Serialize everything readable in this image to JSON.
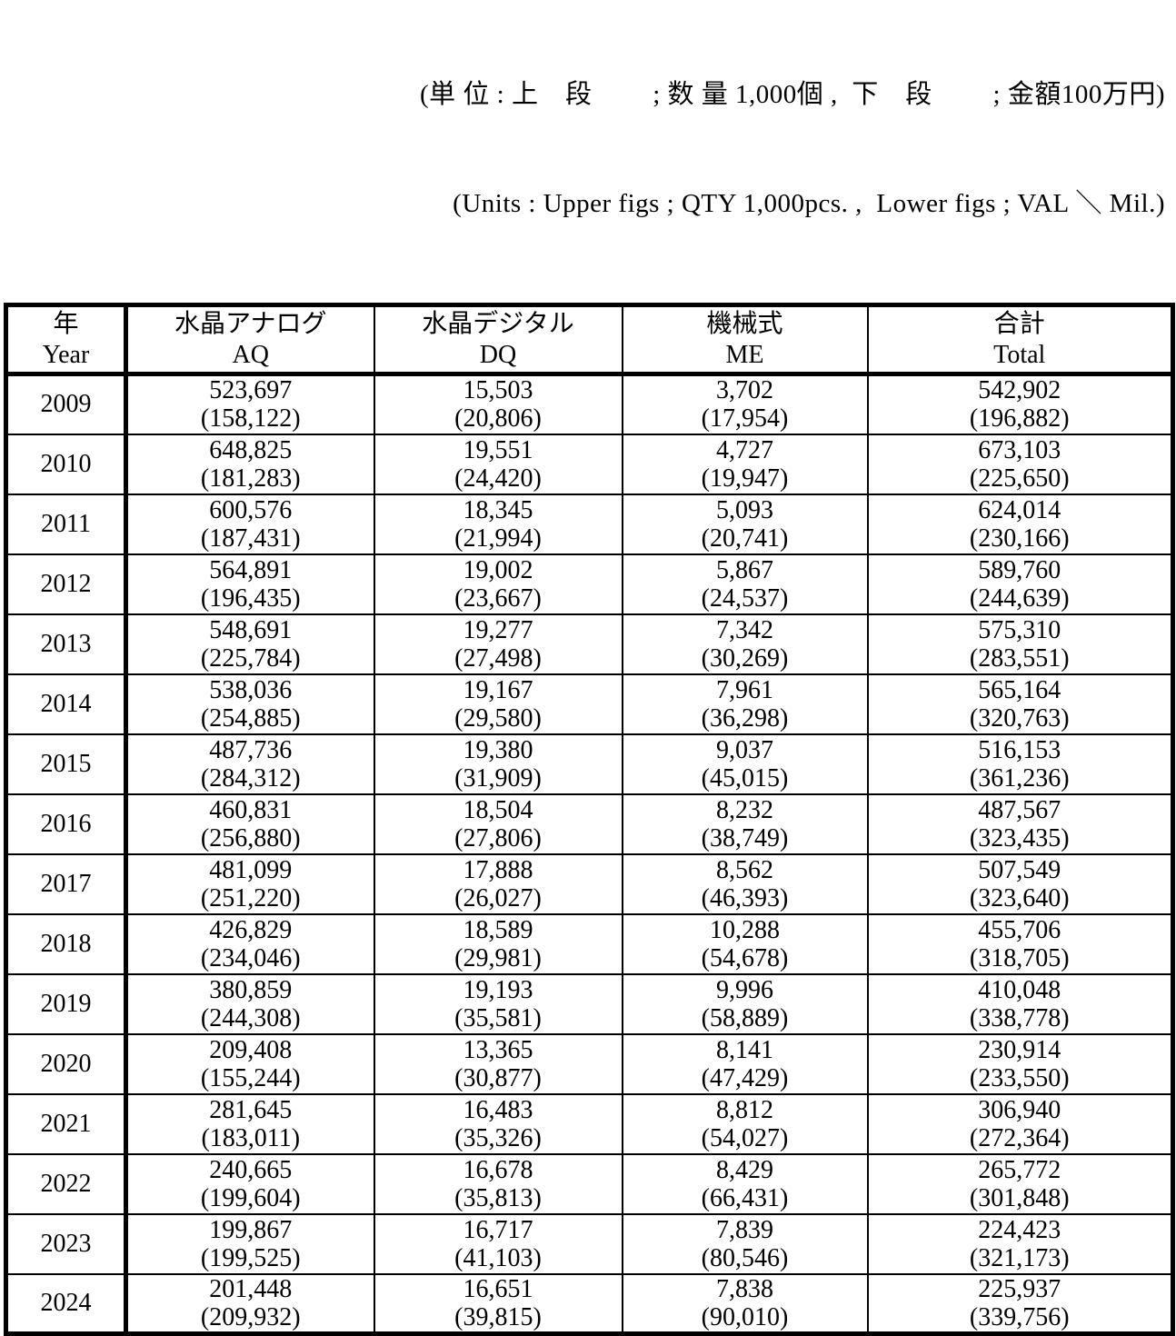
{
  "caption": {
    "line1": "(単 位 : 上　段　　 ; 数 量 1,000個 ,  下　段　　 ; 金額100万円)",
    "line2": "(Units : Upper figs ; QTY 1,000pcs. ,  Lower figs ; VAL ＼ Mil.)"
  },
  "table": {
    "columns": [
      {
        "jp": "年",
        "en": "Year"
      },
      {
        "jp": "水晶アナログ",
        "en": "AQ"
      },
      {
        "jp": "水晶デジタル",
        "en": "DQ"
      },
      {
        "jp": "機械式",
        "en": "ME"
      },
      {
        "jp": "合計",
        "en": "Total"
      }
    ],
    "rows": [
      {
        "year": "2009",
        "cells": [
          {
            "qty": "523,697",
            "val": "(158,122)"
          },
          {
            "qty": "15,503",
            "val": "(20,806)"
          },
          {
            "qty": "3,702",
            "val": "(17,954)"
          },
          {
            "qty": "542,902",
            "val": "(196,882)"
          }
        ]
      },
      {
        "year": "2010",
        "cells": [
          {
            "qty": "648,825",
            "val": "(181,283)"
          },
          {
            "qty": "19,551",
            "val": "(24,420)"
          },
          {
            "qty": "4,727",
            "val": "(19,947)"
          },
          {
            "qty": "673,103",
            "val": "(225,650)"
          }
        ]
      },
      {
        "year": "2011",
        "cells": [
          {
            "qty": "600,576",
            "val": "(187,431)"
          },
          {
            "qty": "18,345",
            "val": "(21,994)"
          },
          {
            "qty": "5,093",
            "val": "(20,741)"
          },
          {
            "qty": "624,014",
            "val": "(230,166)"
          }
        ]
      },
      {
        "year": "2012",
        "cells": [
          {
            "qty": "564,891",
            "val": "(196,435)"
          },
          {
            "qty": "19,002",
            "val": "(23,667)"
          },
          {
            "qty": "5,867",
            "val": "(24,537)"
          },
          {
            "qty": "589,760",
            "val": "(244,639)"
          }
        ]
      },
      {
        "year": "2013",
        "cells": [
          {
            "qty": "548,691",
            "val": "(225,784)"
          },
          {
            "qty": "19,277",
            "val": "(27,498)"
          },
          {
            "qty": "7,342",
            "val": "(30,269)"
          },
          {
            "qty": "575,310",
            "val": "(283,551)"
          }
        ]
      },
      {
        "year": "2014",
        "cells": [
          {
            "qty": "538,036",
            "val": "(254,885)"
          },
          {
            "qty": "19,167",
            "val": "(29,580)"
          },
          {
            "qty": "7,961",
            "val": "(36,298)"
          },
          {
            "qty": "565,164",
            "val": "(320,763)"
          }
        ]
      },
      {
        "year": "2015",
        "cells": [
          {
            "qty": "487,736",
            "val": "(284,312)"
          },
          {
            "qty": "19,380",
            "val": "(31,909)"
          },
          {
            "qty": "9,037",
            "val": "(45,015)"
          },
          {
            "qty": "516,153",
            "val": "(361,236)"
          }
        ]
      },
      {
        "year": "2016",
        "cells": [
          {
            "qty": "460,831",
            "val": "(256,880)"
          },
          {
            "qty": "18,504",
            "val": "(27,806)"
          },
          {
            "qty": "8,232",
            "val": "(38,749)"
          },
          {
            "qty": "487,567",
            "val": "(323,435)"
          }
        ]
      },
      {
        "year": "2017",
        "cells": [
          {
            "qty": "481,099",
            "val": "(251,220)"
          },
          {
            "qty": "17,888",
            "val": "(26,027)"
          },
          {
            "qty": "8,562",
            "val": "(46,393)"
          },
          {
            "qty": "507,549",
            "val": "(323,640)"
          }
        ]
      },
      {
        "year": "2018",
        "cells": [
          {
            "qty": "426,829",
            "val": "(234,046)"
          },
          {
            "qty": "18,589",
            "val": "(29,981)"
          },
          {
            "qty": "10,288",
            "val": "(54,678)"
          },
          {
            "qty": "455,706",
            "val": "(318,705)"
          }
        ]
      },
      {
        "year": "2019",
        "cells": [
          {
            "qty": "380,859",
            "val": "(244,308)"
          },
          {
            "qty": "19,193",
            "val": "(35,581)"
          },
          {
            "qty": "9,996",
            "val": "(58,889)"
          },
          {
            "qty": "410,048",
            "val": "(338,778)"
          }
        ]
      },
      {
        "year": "2020",
        "cells": [
          {
            "qty": "209,408",
            "val": "(155,244)"
          },
          {
            "qty": "13,365",
            "val": "(30,877)"
          },
          {
            "qty": "8,141",
            "val": "(47,429)"
          },
          {
            "qty": "230,914",
            "val": "(233,550)"
          }
        ]
      },
      {
        "year": "2021",
        "cells": [
          {
            "qty": "281,645",
            "val": "(183,011)"
          },
          {
            "qty": "16,483",
            "val": "(35,326)"
          },
          {
            "qty": "8,812",
            "val": "(54,027)"
          },
          {
            "qty": "306,940",
            "val": "(272,364)"
          }
        ]
      },
      {
        "year": "2022",
        "cells": [
          {
            "qty": "240,665",
            "val": "(199,604)"
          },
          {
            "qty": "16,678",
            "val": "(35,813)"
          },
          {
            "qty": "8,429",
            "val": "(66,431)"
          },
          {
            "qty": "265,772",
            "val": "(301,848)"
          }
        ]
      },
      {
        "year": "2023",
        "cells": [
          {
            "qty": "199,867",
            "val": "(199,525)"
          },
          {
            "qty": "16,717",
            "val": "(41,103)"
          },
          {
            "qty": "7,839",
            "val": "(80,546)"
          },
          {
            "qty": "224,423",
            "val": "(321,173)"
          }
        ]
      },
      {
        "year": "2024",
        "cells": [
          {
            "qty": "201,448",
            "val": "(209,932)"
          },
          {
            "qty": "16,651",
            "val": "(39,815)"
          },
          {
            "qty": "7,838",
            "val": "(90,010)"
          },
          {
            "qty": "225,937",
            "val": "(339,756)"
          }
        ]
      }
    ]
  }
}
